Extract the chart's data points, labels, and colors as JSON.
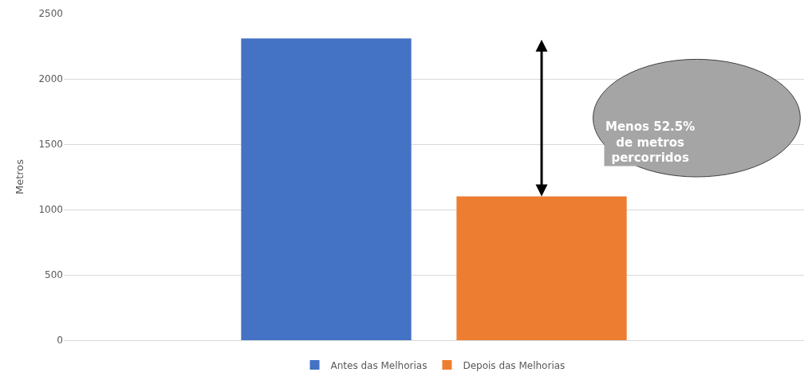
{
  "chart_data": {
    "type": "bar",
    "categories": [
      null
    ],
    "ylabel": "Metros",
    "series": [
      {
        "name": "Antes das Melhorias",
        "color": "#4472c4",
        "values": [
          2310
        ]
      },
      {
        "name": "Depois das Melhorias",
        "color": "#ed7d31",
        "values": [
          1100
        ]
      }
    ],
    "ylim": [
      0,
      2500
    ],
    "yticks": [
      0,
      500,
      1000,
      1500,
      2000,
      2500
    ],
    "grid": "y",
    "legend": "bottom",
    "annotations": [
      "Menos 52.5%\nde metros\npercorridos"
    ]
  }
}
